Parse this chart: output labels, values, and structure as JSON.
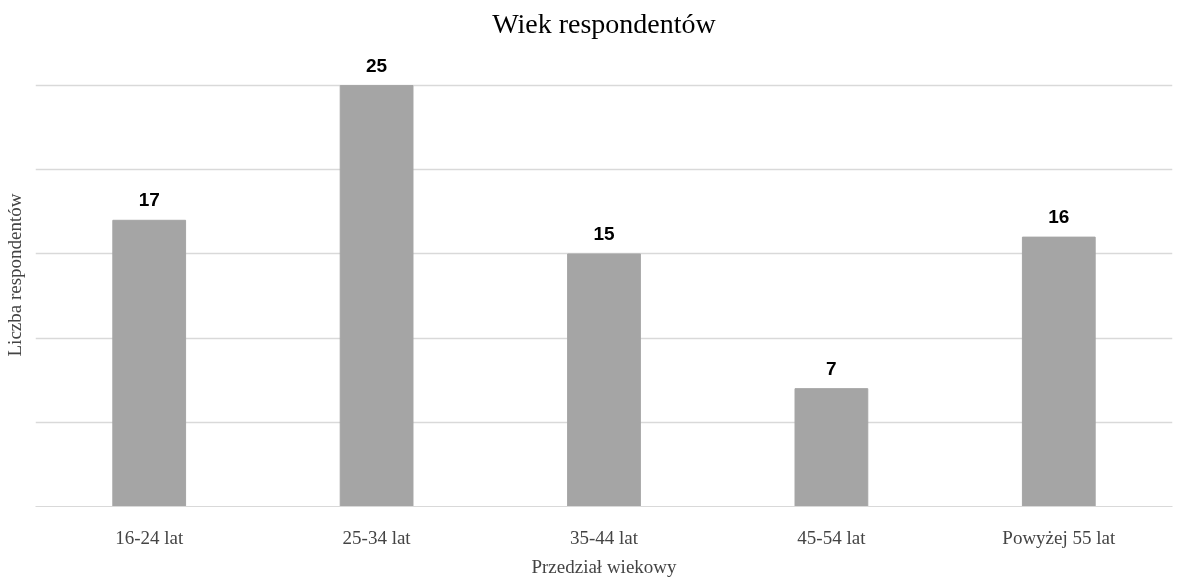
{
  "chart_data": {
    "type": "bar",
    "title": "Wiek respondentów",
    "xlabel": "Przedział wiekowy",
    "ylabel": "Liczba respondentów",
    "categories": [
      "16-24 lat",
      "25-34 lat",
      "35-44 lat",
      "45-54 lat",
      "Powyżej 55 lat"
    ],
    "values": [
      17,
      25,
      15,
      7,
      16
    ],
    "color": "#a5a5a5",
    "grid": "y",
    "tick_labels": "x",
    "data_labels": true
  }
}
